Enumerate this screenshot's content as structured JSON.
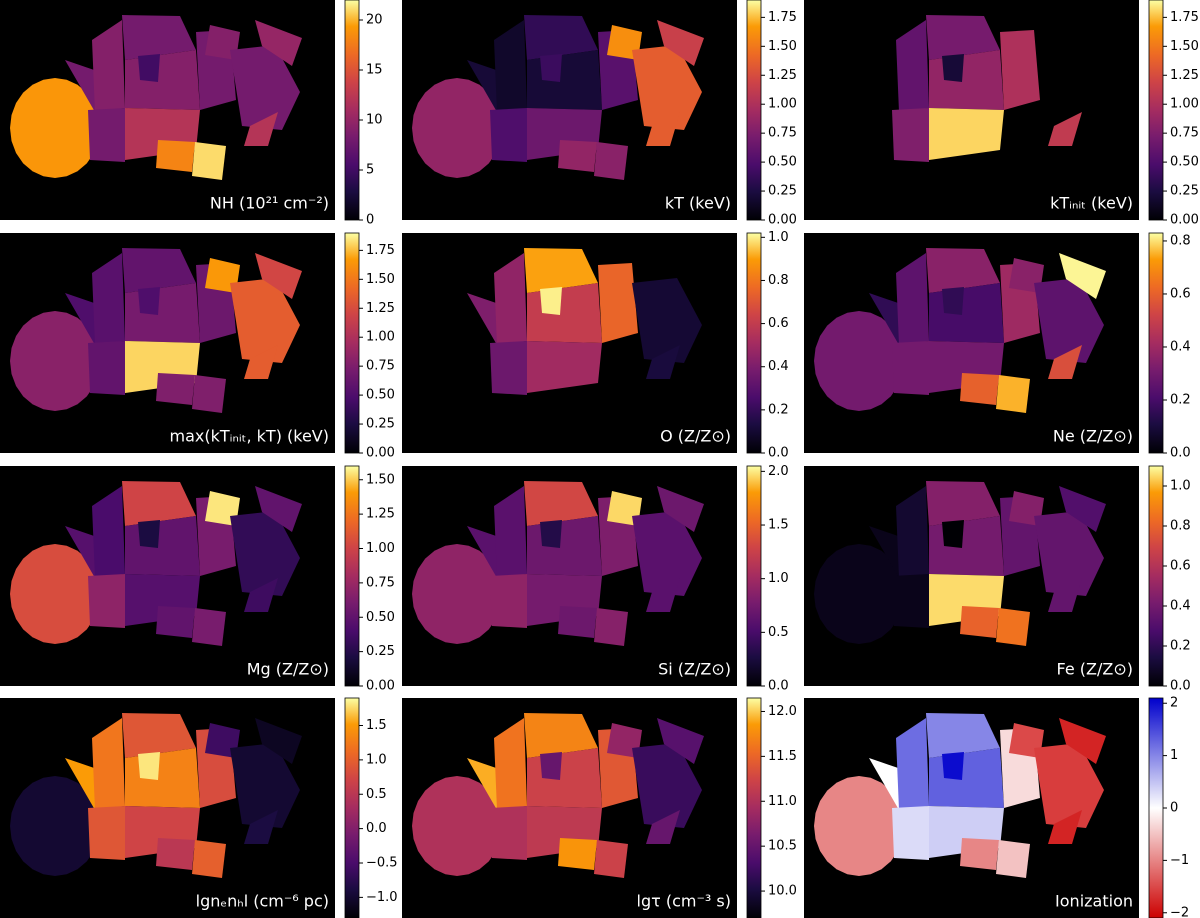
{
  "chart_data": {
    "type": "map",
    "panels": [
      {
        "label": "NH (10²¹ cm⁻²)",
        "colormap": "inferno",
        "vlim": [
          0,
          22
        ],
        "ticks": [
          0,
          5,
          10,
          15,
          20
        ],
        "values": [
          19,
          8,
          9,
          8,
          9,
          8,
          12,
          8,
          9,
          18,
          21,
          8,
          10,
          12,
          5
        ]
      },
      {
        "label": "kT (keV)",
        "colormap": "inferno",
        "vlim": [
          0,
          1.9
        ],
        "ticks": [
          {
            "value": 0,
            "label": "0.00"
          },
          {
            "value": 0.25,
            "label": "0.25"
          },
          {
            "value": 0.5,
            "label": "0.50"
          },
          {
            "value": 0.75,
            "label": "0.75"
          },
          {
            "value": 1,
            "label": "1.00"
          },
          {
            "value": 1.25,
            "label": "1.25"
          },
          {
            "value": 1.5,
            "label": "1.50"
          },
          {
            "value": 1.75,
            "label": "1.75"
          }
        ],
        "values": [
          0.85,
          0.2,
          0.15,
          0.35,
          0.2,
          0.5,
          0.65,
          0.55,
          1.6,
          0.85,
          0.8,
          1.35,
          1.15,
          1.35,
          0.4
        ]
      },
      {
        "label": "kTᵢₙᵢₜ (keV)",
        "colormap": "inferno",
        "vlim": [
          0,
          1.9
        ],
        "ticks": [
          {
            "value": 0,
            "label": "0.00"
          },
          {
            "value": 0.25,
            "label": "0.25"
          },
          {
            "value": 0.5,
            "label": "0.50"
          },
          {
            "value": 0.75,
            "label": "0.75"
          },
          {
            "value": 1,
            "label": "1.00"
          },
          {
            "value": 1.25,
            "label": "1.25"
          },
          {
            "value": 1.5,
            "label": "1.50"
          },
          {
            "value": 1.75,
            "label": "1.75"
          }
        ],
        "values": [
          null,
          null,
          0.6,
          0.7,
          0.85,
          0.75,
          1.8,
          1.0,
          null,
          null,
          null,
          null,
          null,
          1.1,
          0.2
        ]
      },
      {
        "label": "max(kTᵢₙᵢₜ, kT) (keV)",
        "colormap": "inferno",
        "vlim": [
          0,
          1.9
        ],
        "ticks": [
          {
            "value": 0,
            "label": "0.00"
          },
          {
            "value": 0.25,
            "label": "0.25"
          },
          {
            "value": 0.5,
            "label": "0.50"
          },
          {
            "value": 0.75,
            "label": "0.75"
          },
          {
            "value": 1,
            "label": "1.00"
          },
          {
            "value": 1.25,
            "label": "1.25"
          },
          {
            "value": 1.5,
            "label": "1.50"
          },
          {
            "value": 1.75,
            "label": "1.75"
          }
        ],
        "values": [
          0.8,
          0.5,
          0.55,
          0.6,
          0.7,
          0.6,
          1.8,
          0.65,
          1.65,
          0.75,
          0.75,
          1.35,
          1.2,
          1.35,
          0.5
        ]
      },
      {
        "label": "O (Z/Z⊙)",
        "colormap": "inferno",
        "vlim": [
          0,
          1.02
        ],
        "ticks": [
          {
            "value": 0,
            "label": "0.0"
          },
          {
            "value": 0.2,
            "label": "0.2"
          },
          {
            "value": 0.4,
            "label": "0.4"
          },
          {
            "value": 0.6,
            "label": "0.6"
          },
          {
            "value": 0.8,
            "label": "0.8"
          },
          {
            "value": 1,
            "label": "1.0"
          }
        ],
        "values": [
          null,
          0.4,
          0.45,
          0.9,
          0.6,
          0.35,
          0.5,
          0.75,
          null,
          null,
          null,
          0.1,
          null,
          0.12,
          1.0
        ]
      },
      {
        "label": "Ne (Z/Z⊙)",
        "colormap": "inferno",
        "vlim": [
          0,
          0.83
        ],
        "ticks": [
          {
            "value": 0,
            "label": "0.0"
          },
          {
            "value": 0.2,
            "label": "0.2"
          },
          {
            "value": 0.4,
            "label": "0.4"
          },
          {
            "value": 0.6,
            "label": "0.6"
          },
          {
            "value": 0.8,
            "label": "0.8"
          }
        ],
        "values": [
          0.3,
          0.15,
          0.25,
          0.35,
          0.2,
          0.3,
          0.3,
          0.4,
          0.35,
          0.6,
          0.75,
          0.25,
          0.82,
          0.55,
          0.15
        ]
      },
      {
        "label": "Mg (Z/Z⊙)",
        "colormap": "inferno",
        "vlim": [
          0,
          1.6
        ],
        "ticks": [
          {
            "value": 0,
            "label": "0.00"
          },
          {
            "value": 0.25,
            "label": "0.25"
          },
          {
            "value": 0.5,
            "label": "0.50"
          },
          {
            "value": 0.75,
            "label": "0.75"
          },
          {
            "value": 1,
            "label": "1.00"
          },
          {
            "value": 1.25,
            "label": "1.25"
          },
          {
            "value": 1.5,
            "label": "1.50"
          }
        ],
        "values": [
          1.05,
          0.45,
          0.4,
          1.0,
          0.5,
          0.7,
          0.45,
          0.6,
          1.55,
          0.5,
          0.6,
          0.3,
          0.5,
          0.35,
          0.2
        ]
      },
      {
        "label": "Si (Z/Z⊙)",
        "colormap": "inferno",
        "vlim": [
          0,
          2.05
        ],
        "ticks": [
          {
            "value": 0,
            "label": "0.0"
          },
          {
            "value": 0.5,
            "label": "0.5"
          },
          {
            "value": 1,
            "label": "1.0"
          },
          {
            "value": 1.5,
            "label": "1.5"
          },
          {
            "value": 2,
            "label": "2.0"
          }
        ],
        "values": [
          0.9,
          0.6,
          0.6,
          1.3,
          0.7,
          0.9,
          0.75,
          0.8,
          1.95,
          0.7,
          0.85,
          0.6,
          0.7,
          0.6,
          0.3
        ]
      },
      {
        "label": "Fe (Z/Z⊙)",
        "colormap": "inferno",
        "vlim": [
          0,
          1.1
        ],
        "ticks": [
          {
            "value": 0,
            "label": "0.0"
          },
          {
            "value": 0.2,
            "label": "0.2"
          },
          {
            "value": 0.4,
            "label": "0.4"
          },
          {
            "value": 0.6,
            "label": "0.6"
          },
          {
            "value": 0.8,
            "label": "0.8"
          },
          {
            "value": 1,
            "label": "1.0"
          }
        ],
        "values": [
          0.05,
          0.05,
          0.1,
          0.45,
          0.4,
          0.05,
          1.05,
          0.35,
          0.45,
          0.8,
          0.85,
          0.35,
          0.3,
          0.35,
          0
        ]
      },
      {
        "label": "lgnₑnₕl (cm⁻⁶ pc)",
        "colormap": "inferno",
        "vlim": [
          -1.3,
          1.9
        ],
        "ticks": [
          {
            "value": -1,
            "label": "−1.0"
          },
          {
            "value": -0.5,
            "label": "−0.5"
          },
          {
            "value": 0,
            "label": "0.0"
          },
          {
            "value": 0.5,
            "label": "0.5"
          },
          {
            "value": 1,
            "label": "1.0"
          },
          {
            "value": 1.5,
            "label": "1.5"
          }
        ],
        "values": [
          -1.0,
          1.5,
          1.2,
          0.9,
          1.3,
          0.9,
          0.7,
          0.8,
          -0.6,
          0.5,
          1.0,
          -1.0,
          -1.1,
          -0.9,
          1.8
        ]
      },
      {
        "label": "lgτ (cm⁻³ s)",
        "colormap": "inferno",
        "vlim": [
          9.7,
          12.15
        ],
        "ticks": [
          {
            "value": 10,
            "label": "10.0"
          },
          {
            "value": 10.5,
            "label": "10.5"
          },
          {
            "value": 11,
            "label": "11.0"
          },
          {
            "value": 11.5,
            "label": "11.5"
          },
          {
            "value": 12,
            "label": "12.0"
          }
        ],
        "values": [
          11.0,
          11.9,
          11.6,
          11.7,
          11.2,
          11.0,
          11.1,
          11.4,
          10.8,
          11.8,
          11.2,
          10.2,
          10.4,
          10.5,
          10.5
        ]
      },
      {
        "label": "Ionization",
        "colormap": "red-white-blue",
        "vlim": [
          -2.1,
          2.1
        ],
        "ticks": [
          {
            "value": -2,
            "label": "−2"
          },
          {
            "value": -1,
            "label": "−1"
          },
          0,
          1,
          2
        ],
        "values": [
          -1.0,
          0,
          1.2,
          1.0,
          1.3,
          0.3,
          0.4,
          -0.3,
          -1.5,
          -1.0,
          -0.5,
          -1.6,
          -1.8,
          -1.8,
          2.0
        ]
      }
    ]
  }
}
